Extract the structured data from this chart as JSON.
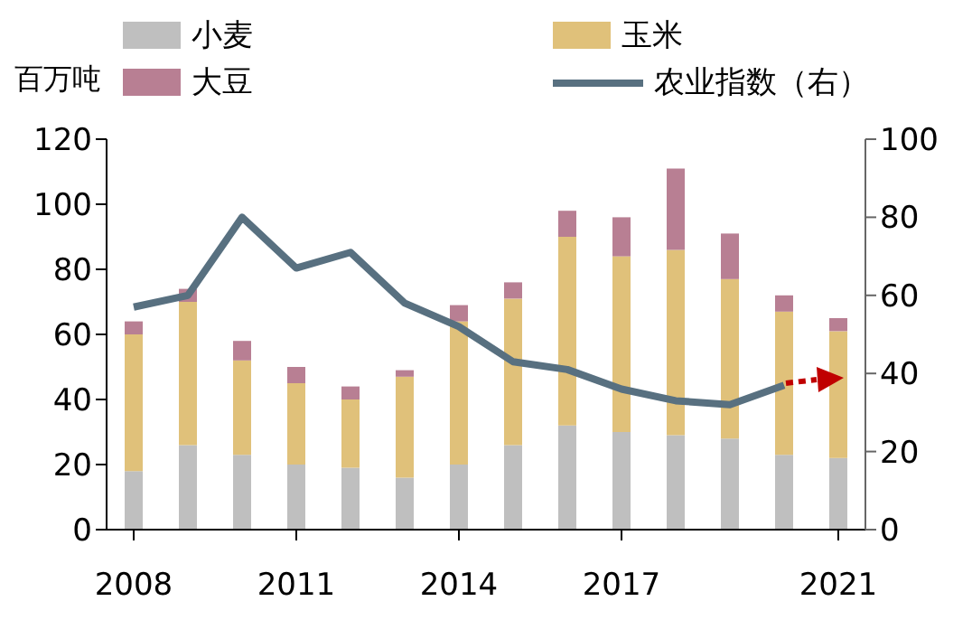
{
  "chart_data": {
    "type": "bar",
    "ylabel": "百万吨",
    "stacked": true,
    "legend": "top",
    "marker": "none",
    "line_style": "solid",
    "categories": [
      "2008",
      null,
      null,
      "2011",
      null,
      null,
      "2014",
      null,
      null,
      "2017",
      null,
      null,
      null,
      "2021"
    ],
    "series": [
      {
        "name": "小麦",
        "color": "#bfbfbf",
        "values": [
          18,
          26,
          23,
          20,
          19,
          16,
          20,
          26,
          32,
          30,
          29,
          28,
          23,
          22
        ]
      },
      {
        "name": "玉米",
        "color": "#e0c17a",
        "values": [
          42,
          44,
          29,
          25,
          21,
          31,
          44,
          45,
          58,
          54,
          57,
          49,
          44,
          39
        ]
      },
      {
        "name": "大豆",
        "color": "#b87f93",
        "values": [
          4,
          4,
          6,
          5,
          4,
          2,
          5,
          5,
          8,
          12,
          25,
          14,
          5,
          4
        ]
      },
      {
        "name": "农业指数（右）",
        "type": "line",
        "axis": "y2",
        "color": "#587080",
        "values": [
          57,
          60,
          80,
          67,
          71,
          58,
          52,
          43,
          41,
          36,
          33,
          32,
          37,
          null
        ]
      }
    ],
    "ylim": [
      0,
      120
    ],
    "yticks": [
      0,
      20,
      40,
      60,
      80,
      100,
      120
    ],
    "y2lim": [
      0,
      100
    ],
    "y2ticks": [
      0,
      20,
      40,
      60,
      80,
      100
    ]
  }
}
